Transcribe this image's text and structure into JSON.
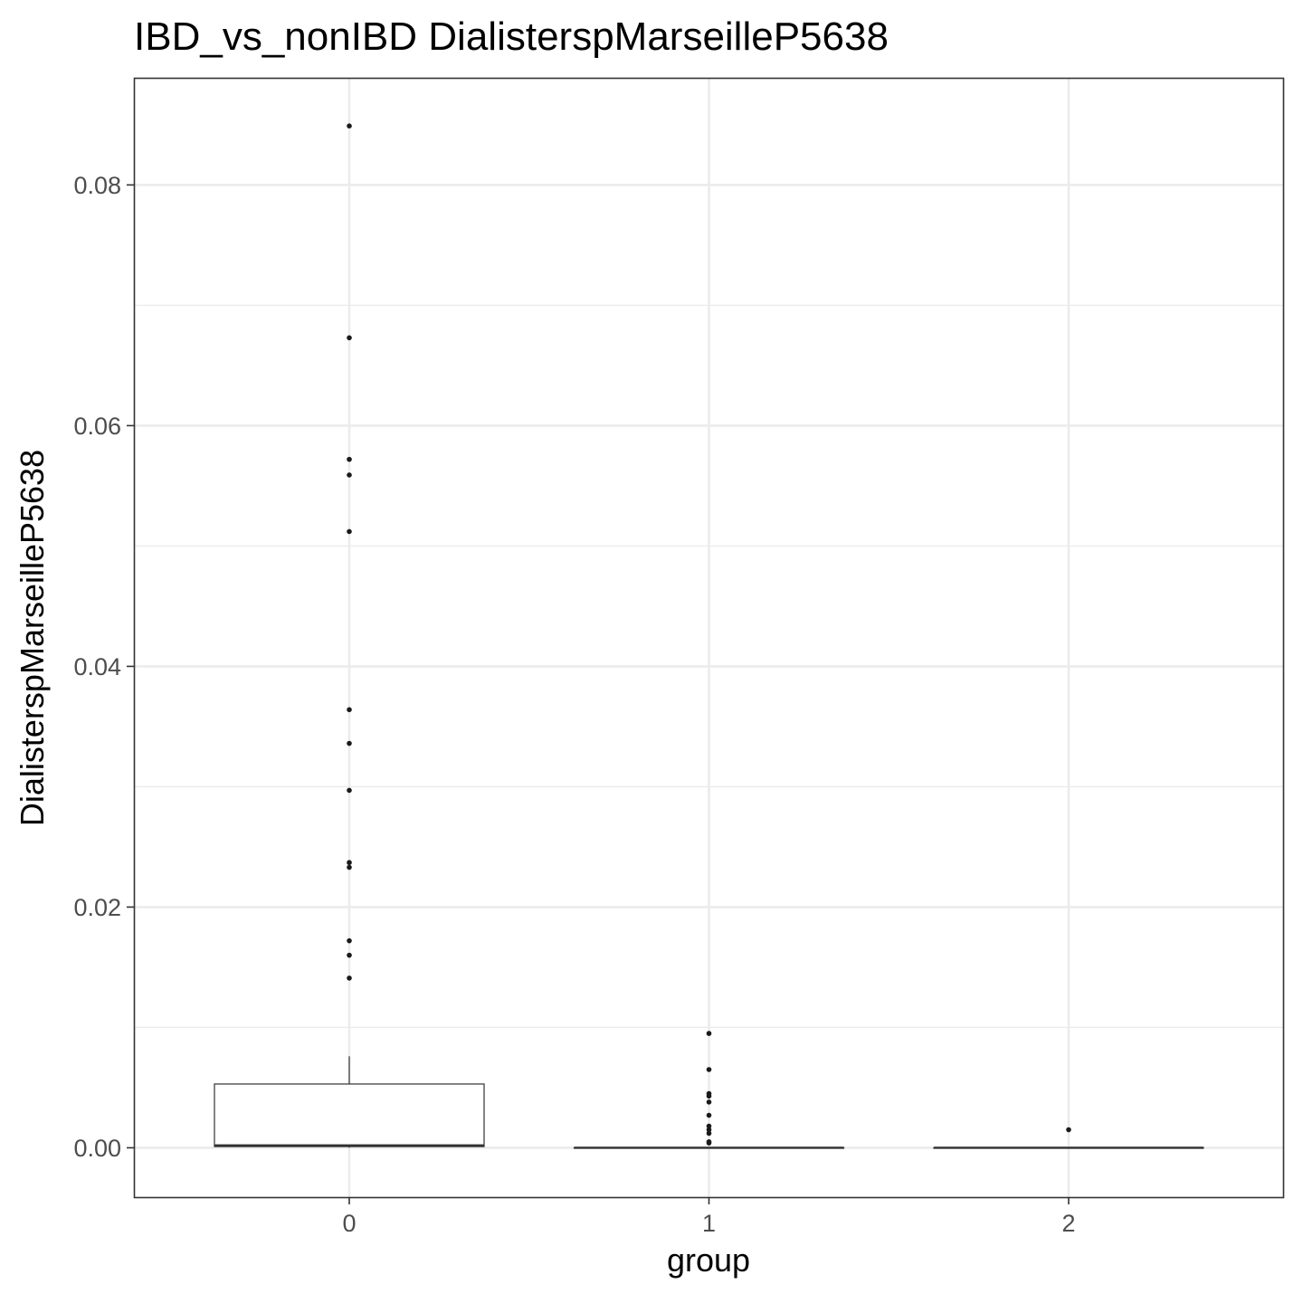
{
  "chart_data": {
    "type": "boxplot",
    "title": "IBD_vs_nonIBD DialisterspMarseilleP5638",
    "xlabel": "group",
    "ylabel": "DialisterspMarseilleP5638",
    "categories": [
      "0",
      "1",
      "2"
    ],
    "ylim": [
      -0.0041,
      0.0889
    ],
    "yticks": [
      0.0,
      0.02,
      0.04,
      0.06,
      0.08
    ],
    "ytick_labels": [
      "0.00",
      "0.02",
      "0.04",
      "0.06",
      "0.08"
    ],
    "grid": true,
    "legend": "none",
    "boxes": [
      {
        "group": "0",
        "lower_whisker": 0.0,
        "q1": 0.0001,
        "median": 0.0002,
        "q3": 0.0053,
        "upper_whisker": 0.0076,
        "outliers": [
          0.0849,
          0.0673,
          0.0572,
          0.0559,
          0.0512,
          0.0364,
          0.0336,
          0.0297,
          0.0237,
          0.0233,
          0.0172,
          0.016,
          0.0141
        ]
      },
      {
        "group": "1",
        "lower_whisker": 0.0,
        "q1": 0.0,
        "median": 0.0,
        "q3": 0.0,
        "upper_whisker": 0.0,
        "outliers": [
          0.0095,
          0.0065,
          0.0045,
          0.0043,
          0.0038,
          0.0027,
          0.0018,
          0.0015,
          0.0012,
          0.0005,
          0.0004
        ]
      },
      {
        "group": "2",
        "lower_whisker": 0.0,
        "q1": 0.0,
        "median": 0.0,
        "q3": 0.0,
        "upper_whisker": 0.0,
        "outliers": [
          0.0015
        ]
      }
    ],
    "colors": {
      "box_fill": "#ffffff",
      "box_line": "#333333",
      "point": "#1a1a1a",
      "grid": "#ebebeb",
      "panel_border": "#333333"
    }
  }
}
